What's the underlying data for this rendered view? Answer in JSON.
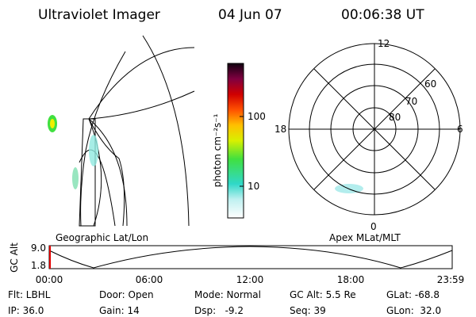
{
  "header": {
    "instrument": "Ultraviolet Imager",
    "date": "04 Jun 07",
    "time": "00:06:38 UT"
  },
  "colorbar": {
    "label": "photon cm⁻²s⁻¹",
    "ticks": [
      "100",
      "10"
    ]
  },
  "polar": {
    "mlt_labels": [
      "12",
      "18",
      "6",
      "0"
    ],
    "mlat_labels": [
      "60",
      "70",
      "80"
    ]
  },
  "panels": {
    "left": "Geographic Lat/Lon",
    "right": "Apex MLat/MLT"
  },
  "timeline": {
    "axis_label": "GC Alt",
    "y_labels": [
      "9.0",
      "1.8"
    ],
    "x_labels": [
      "00:00",
      "06:00",
      "12:00",
      "18:00",
      "23:59"
    ]
  },
  "status": {
    "rows": [
      [
        "Flt: LBHL",
        "Door: Open",
        "Mode: Normal",
        "GC Alt: 5.5 Re",
        "GLat: -68.8"
      ],
      [
        "IP: 36.0",
        "Gain: 14",
        "Dsp:   -9.2",
        "Seq: 39",
        "GLon:  32.0"
      ]
    ]
  }
}
